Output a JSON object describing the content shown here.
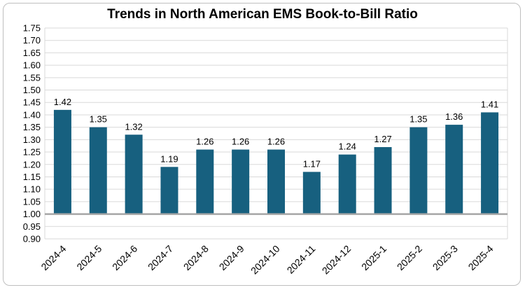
{
  "chart_data": {
    "type": "bar",
    "title": "Trends in North American EMS Book-to-Bill Ratio",
    "xlabel": "",
    "ylabel": "",
    "categories": [
      "2024-4",
      "2024-5",
      "2024-6",
      "2024-7",
      "2024-8",
      "2024-9",
      "2024-10",
      "2024-11",
      "2024-12",
      "2025-1",
      "2025-2",
      "2025-3",
      "2025-4"
    ],
    "values": [
      1.42,
      1.35,
      1.32,
      1.19,
      1.26,
      1.26,
      1.26,
      1.17,
      1.24,
      1.27,
      1.35,
      1.36,
      1.41
    ],
    "data_labels": [
      "1.42",
      "1.35",
      "1.32",
      "1.19",
      "1.26",
      "1.26",
      "1.26",
      "1.17",
      "1.24",
      "1.27",
      "1.35",
      "1.36",
      "1.41"
    ],
    "baseline": 1.0,
    "ylim": [
      0.9,
      1.75
    ],
    "yticks": [
      "1.75",
      "1.70",
      "1.65",
      "1.60",
      "1.55",
      "1.50",
      "1.45",
      "1.40",
      "1.35",
      "1.30",
      "1.25",
      "1.20",
      "1.15",
      "1.10",
      "1.05",
      "1.00",
      "0.95",
      "0.90"
    ],
    "grid": true,
    "legend": "none",
    "colors": {
      "bar": "#17607f",
      "grid": "#d9d9d9",
      "baseline": "#a6a6a6"
    }
  }
}
